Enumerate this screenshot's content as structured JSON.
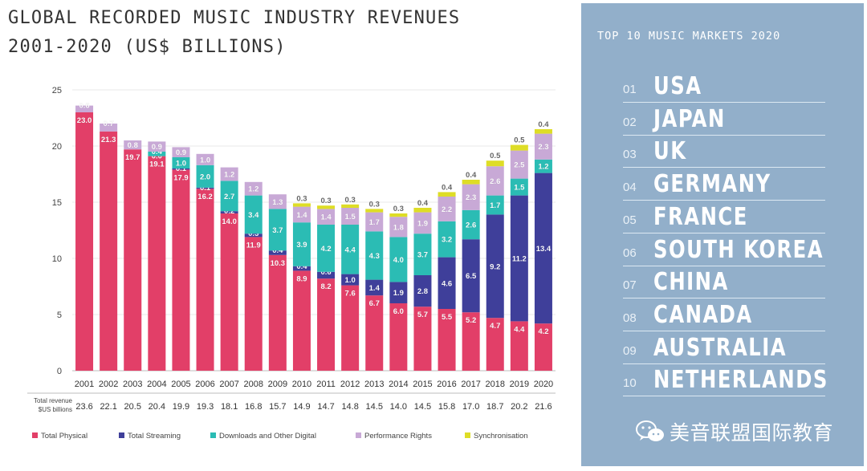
{
  "title_line1": "GLOBAL RECORDED MUSIC INDUSTRY REVENUES",
  "title_line2": "2001-2020 (US$ BILLIONS)",
  "chart_data": {
    "type": "bar",
    "stacked": true,
    "categories": [
      "2001",
      "2002",
      "2003",
      "2004",
      "2005",
      "2006",
      "2007",
      "2008",
      "2009",
      "2010",
      "2011",
      "2012",
      "2013",
      "2014",
      "2015",
      "2016",
      "2017",
      "2018",
      "2019",
      "2020"
    ],
    "series": [
      {
        "name": "Total Physical",
        "color": "#e23f68",
        "values": [
          23.0,
          21.3,
          19.7,
          19.1,
          17.9,
          16.2,
          14.0,
          11.9,
          10.3,
          8.9,
          8.2,
          7.6,
          6.7,
          6.0,
          5.7,
          5.5,
          5.2,
          4.7,
          4.4,
          4.2
        ]
      },
      {
        "name": "Total Streaming",
        "color": "#3f3f9a",
        "values": [
          null,
          null,
          null,
          0.0,
          0.1,
          0.1,
          0.2,
          0.3,
          0.4,
          0.4,
          0.6,
          1.0,
          1.4,
          1.9,
          2.8,
          4.6,
          6.5,
          9.2,
          11.2,
          13.4
        ]
      },
      {
        "name": "Downloads and Other Digital",
        "color": "#2bbcb4",
        "values": [
          null,
          null,
          null,
          0.4,
          1.0,
          2.0,
          2.7,
          3.4,
          3.7,
          3.9,
          4.2,
          4.4,
          4.3,
          4.0,
          3.7,
          3.2,
          2.6,
          1.7,
          1.5,
          1.2
        ]
      },
      {
        "name": "Performance Rights",
        "color": "#c8a9d6",
        "values": [
          0.6,
          0.7,
          0.8,
          0.9,
          0.9,
          1.0,
          1.2,
          1.2,
          1.3,
          1.4,
          1.4,
          1.5,
          1.7,
          1.8,
          1.9,
          2.2,
          2.3,
          2.6,
          2.5,
          2.3
        ]
      },
      {
        "name": "Synchronisation",
        "color": "#dedd26",
        "values": [
          null,
          null,
          null,
          null,
          null,
          null,
          null,
          null,
          null,
          0.3,
          0.3,
          0.3,
          0.3,
          0.3,
          0.4,
          0.4,
          0.4,
          0.5,
          0.5,
          0.4
        ]
      }
    ],
    "totals_label": "Total revenue $US billions",
    "totals": [
      "23.6",
      "22.1",
      "20.5",
      "20.4",
      "19.9",
      "19.3",
      "18.1",
      "16.8",
      "15.7",
      "14.9",
      "14.7",
      "14.8",
      "14.5",
      "14.0",
      "14.5",
      "15.8",
      "17.0",
      "18.7",
      "20.2",
      "21.6"
    ],
    "ylim": [
      0,
      25
    ],
    "yticks": [
      "0",
      "5",
      "10",
      "15",
      "20",
      "25"
    ],
    "grid": true,
    "legend_position": "bottom"
  },
  "markets": {
    "title": "TOP 10 MUSIC MARKETS 2020",
    "items": [
      {
        "rank": "01",
        "name": "USA"
      },
      {
        "rank": "02",
        "name": "JAPAN"
      },
      {
        "rank": "03",
        "name": "UK"
      },
      {
        "rank": "04",
        "name": "GERMANY"
      },
      {
        "rank": "05",
        "name": "FRANCE"
      },
      {
        "rank": "06",
        "name": "SOUTH KOREA"
      },
      {
        "rank": "07",
        "name": "CHINA"
      },
      {
        "rank": "08",
        "name": "CANADA"
      },
      {
        "rank": "09",
        "name": "AUSTRALIA"
      },
      {
        "rank": "10",
        "name": "NETHERLANDS"
      }
    ]
  },
  "watermark": {
    "text": "美音联盟国际教育",
    "icon": "wechat-icon"
  }
}
